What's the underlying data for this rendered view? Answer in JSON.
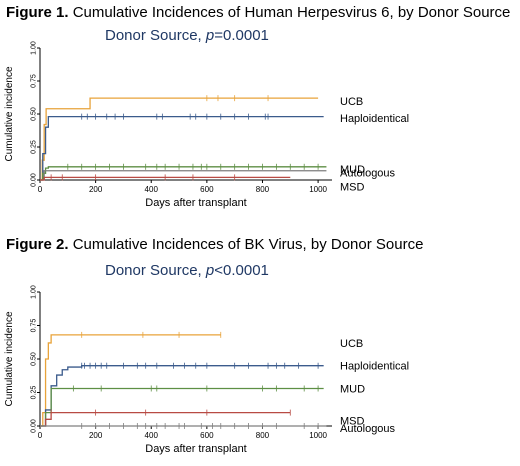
{
  "colors": {
    "UCB": "#e8a33a",
    "Haploidentical": "#3b5b8c",
    "MUD": "#5e8f44",
    "Autologous": "#7f7f7f",
    "MSD": "#b84b44",
    "subtitle": "#1f3864"
  },
  "chart_data": [
    {
      "type": "line",
      "step": true,
      "figure_label": "Figure 1.",
      "title": "Cumulative Incidences of Human Herpesvirus 6, by Donor Source",
      "subtitle_prefix": "Donor Source, ",
      "p_symbol": "p",
      "p_value": "=0.0001",
      "xlabel": "Days after transplant",
      "ylabel": "Cumulative incidence",
      "xlim": [
        0,
        1050
      ],
      "ylim": [
        0,
        1
      ],
      "xticks": [
        "0",
        "200",
        "400",
        "600",
        "800",
        "1000"
      ],
      "xtick_values": [
        0,
        200,
        400,
        600,
        800,
        1000
      ],
      "yticks": [
        "0.00",
        "0.25",
        "0.50",
        "0.75",
        "1.00"
      ],
      "ytick_values": [
        0,
        0.25,
        0.5,
        0.75,
        1
      ],
      "series": [
        {
          "name": "UCB",
          "x": [
            0,
            8,
            15,
            22,
            30,
            180,
            180,
            1000
          ],
          "y": [
            0,
            0.15,
            0.42,
            0.54,
            0.54,
            0.54,
            0.62,
            0.62
          ],
          "censor": [
            600,
            640,
            700,
            820
          ]
        },
        {
          "name": "Haploidentical",
          "x": [
            0,
            10,
            20,
            30,
            1020
          ],
          "y": [
            0,
            0.2,
            0.4,
            0.48,
            0.48
          ],
          "censor": [
            150,
            170,
            200,
            240,
            270,
            300,
            420,
            440,
            540,
            560,
            600,
            650,
            700,
            750,
            810,
            820
          ]
        },
        {
          "name": "MUD",
          "x": [
            0,
            10,
            20,
            30,
            1030
          ],
          "y": [
            0,
            0.05,
            0.09,
            0.1,
            0.1
          ],
          "censor": [
            100,
            150,
            200,
            250,
            300,
            380,
            420,
            450,
            500,
            550,
            580,
            600,
            650,
            700,
            750,
            800,
            850,
            900,
            950,
            1000
          ]
        },
        {
          "name": "Autologous",
          "x": [
            0,
            15,
            1030
          ],
          "y": [
            0,
            0.07,
            0.07
          ],
          "censor": []
        },
        {
          "name": "MSD",
          "x": [
            0,
            15,
            900
          ],
          "y": [
            0,
            0.02,
            0.02
          ],
          "censor": [
            40,
            80,
            200,
            450,
            550,
            700
          ]
        }
      ],
      "labels": [
        {
          "text": "UCB",
          "y": 0.6
        },
        {
          "text": "Haploidentical",
          "y": 0.47
        },
        {
          "text": "MUD",
          "y": 0.13
        },
        {
          "text": "Autologous",
          "y": 0.065
        },
        {
          "text": "MSD",
          "y": -0.02
        }
      ]
    },
    {
      "type": "line",
      "step": true,
      "figure_label": "Figure 2.",
      "title": "Cumulative Incidences of BK Virus, by Donor Source",
      "subtitle_prefix": "Donor Source, ",
      "p_symbol": "p",
      "p_value": "<0.0001",
      "xlabel": "Days after transplant",
      "ylabel": "Cumulative incidence",
      "xlim": [
        0,
        1050
      ],
      "ylim": [
        0,
        1
      ],
      "xticks": [
        "0",
        "200",
        "400",
        "600",
        "800",
        "1000"
      ],
      "xtick_values": [
        0,
        200,
        400,
        600,
        800,
        1000
      ],
      "yticks": [
        "0.00",
        "0.25",
        "0.50",
        "0.75",
        "1.00"
      ],
      "ytick_values": [
        0,
        0.25,
        0.5,
        0.75,
        1
      ],
      "series": [
        {
          "name": "UCB",
          "x": [
            0,
            10,
            20,
            30,
            40,
            650
          ],
          "y": [
            0,
            0.1,
            0.5,
            0.62,
            0.68,
            0.68
          ],
          "censor": [
            150,
            370,
            500,
            650
          ]
        },
        {
          "name": "Haploidentical",
          "x": [
            0,
            20,
            40,
            60,
            80,
            100,
            150,
            1020
          ],
          "y": [
            0,
            0.12,
            0.3,
            0.38,
            0.42,
            0.44,
            0.45,
            0.45
          ],
          "censor": [
            150,
            160,
            180,
            200,
            220,
            240,
            300,
            350,
            380,
            420,
            480,
            520,
            560,
            600,
            700,
            750,
            820,
            850,
            880,
            930,
            1000
          ]
        },
        {
          "name": "MUD",
          "x": [
            0,
            20,
            40,
            1020
          ],
          "y": [
            0,
            0.1,
            0.28,
            0.28
          ],
          "censor": [
            120,
            220,
            400,
            420,
            600,
            800,
            850,
            950,
            1000
          ]
        },
        {
          "name": "MSD",
          "x": [
            0,
            20,
            40,
            900
          ],
          "y": [
            0,
            0.05,
            0.1,
            0.1
          ],
          "censor": [
            40,
            200,
            380,
            600,
            900
          ]
        },
        {
          "name": "Autologous",
          "x": [
            0,
            1030
          ],
          "y": [
            0,
            0
          ],
          "censor": [
            150,
            200,
            250,
            300,
            350,
            380,
            420,
            450,
            500,
            520,
            580,
            620,
            650,
            700,
            750,
            800,
            850,
            950,
            1000
          ]
        }
      ],
      "labels": [
        {
          "text": "UCB",
          "y": 0.62
        },
        {
          "text": "Haploidentical",
          "y": 0.45
        },
        {
          "text": "MUD",
          "y": 0.28
        },
        {
          "text": "MSD",
          "y": 0.1
        },
        {
          "text": "Autologous",
          "y": 0.0
        }
      ]
    }
  ]
}
